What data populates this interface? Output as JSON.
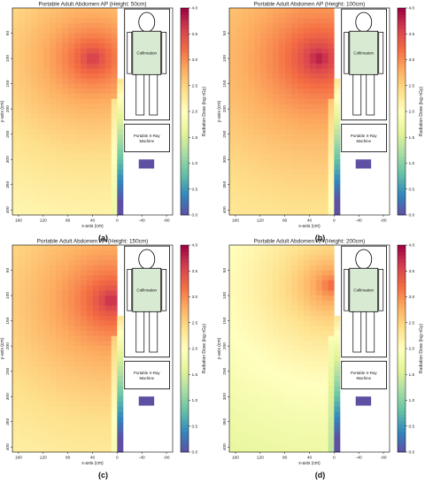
{
  "colors": {
    "scale": [
      "#5e4fa2",
      "#3288bd",
      "#66c2a5",
      "#abdda4",
      "#e6f598",
      "#ffffbf",
      "#fee08b",
      "#fdae61",
      "#f46d43",
      "#d53e4f",
      "#9e0142"
    ],
    "device_box": "#5e4fa2",
    "collimation_fill": "#d9ead3"
  },
  "figure_panels": [
    {
      "caption": "(a)"
    },
    {
      "caption": "(b)"
    },
    {
      "caption": "(c)"
    },
    {
      "caption": "(d)"
    }
  ],
  "chart_data": [
    {
      "type": "heatmap",
      "title": "Portable Adult Abdomen AP (Height: 50cm)",
      "xlabel": "x-axis (cm)",
      "ylabel": "y-axis (cm)",
      "colorbar_label": "Radiation Dose (log nGy)",
      "x_ticks": [
        "160",
        "120",
        "80",
        "40",
        "0",
        "-40",
        "-80"
      ],
      "y_ticks": [
        "50",
        "100",
        "150",
        "200",
        "250",
        "300",
        "350",
        "400"
      ],
      "colorbar_ticks": [
        "0.0",
        "0.5",
        "1.0",
        "1.5",
        "2.0",
        "2.5",
        "3.0",
        "3.5",
        "4.0"
      ],
      "value_range": [
        0,
        4
      ],
      "hotspot": {
        "x_cm": 40,
        "y_cm": 100,
        "peak_log_dose": 3.7
      },
      "annotations": {
        "collimation": "Collimation",
        "machine_line1": "Portable X-Ray",
        "machine_line2": "Machine"
      }
    },
    {
      "type": "heatmap",
      "title": "Portable Adult Abdomen AP (Height: 100cm)",
      "xlabel": "x-axis (cm)",
      "ylabel": "y-axis (cm)",
      "colorbar_label": "Radiation Dose (log nGy)",
      "x_ticks": [
        "160",
        "120",
        "80",
        "40",
        "0",
        "-40",
        "-80"
      ],
      "y_ticks": [
        "50",
        "100",
        "150",
        "200",
        "250",
        "300",
        "350",
        "400"
      ],
      "colorbar_ticks": [
        "0.0",
        "0.5",
        "1.0",
        "1.5",
        "2.0",
        "2.5",
        "3.0",
        "3.5",
        "4.0"
      ],
      "value_range": [
        0,
        4
      ],
      "hotspot": {
        "x_cm": 25,
        "y_cm": 100,
        "peak_log_dose": 3.9
      },
      "annotations": {
        "collimation": "Collimation",
        "machine_line1": "Portable X-Ray",
        "machine_line2": "Machine"
      }
    },
    {
      "type": "heatmap",
      "title": "Portable Adult Abdomen AP (Height: 150cm)",
      "xlabel": "x-axis (cm)",
      "ylabel": "y-axis (cm)",
      "colorbar_label": "Radiation Dose (log nGy)",
      "x_ticks": [
        "160",
        "120",
        "80",
        "40",
        "0",
        "-40",
        "-80"
      ],
      "y_ticks": [
        "50",
        "100",
        "150",
        "200",
        "250",
        "300",
        "350",
        "400"
      ],
      "colorbar_ticks": [
        "0.0",
        "0.5",
        "1.0",
        "1.5",
        "2.0",
        "2.5",
        "3.0",
        "3.5",
        "4.0"
      ],
      "value_range": [
        0,
        4
      ],
      "hotspot": {
        "x_cm": 10,
        "y_cm": 110,
        "peak_log_dose": 3.8
      },
      "annotations": {
        "collimation": "Collimation",
        "machine_line1": "Portable X-Ray",
        "machine_line2": "Machine"
      }
    },
    {
      "type": "heatmap",
      "title": "Portable Adult Abdomen AP (Height: 200cm)",
      "xlabel": "x-axis (cm)",
      "ylabel": "y-axis (cm)",
      "colorbar_label": "Radiation Dose (log nGy)",
      "x_ticks": [
        "160",
        "120",
        "80",
        "40",
        "0",
        "-40",
        "-80"
      ],
      "y_ticks": [
        "50",
        "100",
        "150",
        "200",
        "250",
        "300",
        "350",
        "400"
      ],
      "colorbar_ticks": [
        "0.0",
        "0.5",
        "1.0",
        "1.5",
        "2.0",
        "2.5",
        "3.0",
        "3.5",
        "4.0"
      ],
      "value_range": [
        0,
        4
      ],
      "hotspot": {
        "x_cm": 5,
        "y_cm": 80,
        "peak_log_dose": 3.3
      },
      "annotations": {
        "collimation": "Collimation",
        "machine_line1": "Portable X-Ray",
        "machine_line2": "Machine"
      }
    }
  ]
}
